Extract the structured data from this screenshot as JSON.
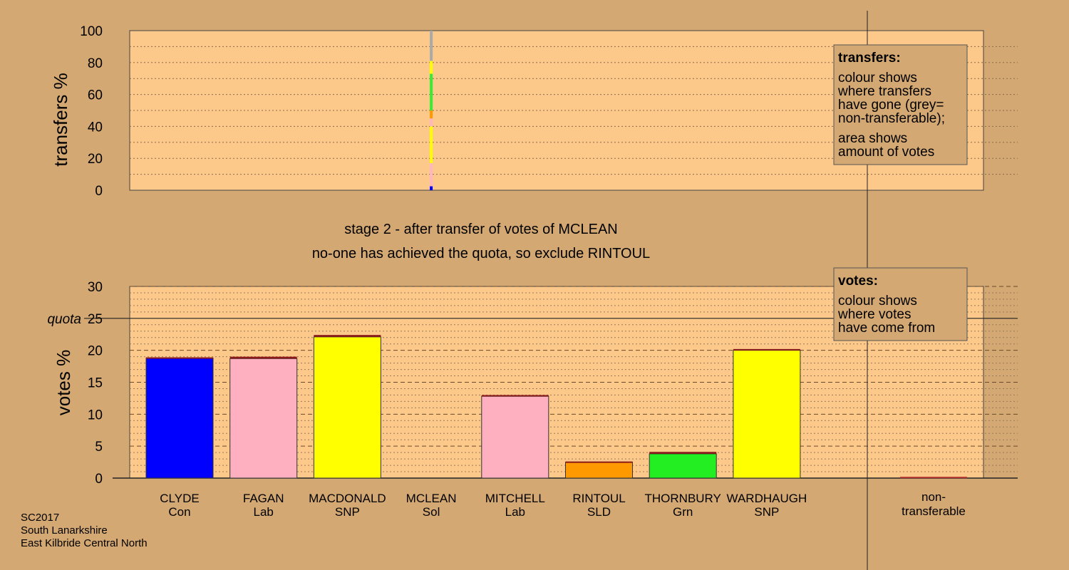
{
  "chart_data": [
    {
      "type": "bar",
      "name": "transfers",
      "ylabel": "transfers %",
      "ylim": [
        0,
        100
      ],
      "yticks": [
        "0",
        "20",
        "40",
        "60",
        "80",
        "100"
      ],
      "source_candidate": "MCLEAN",
      "segments": [
        {
          "from": 0,
          "to": 2.5,
          "color": "#0000ff"
        },
        {
          "from": 2.5,
          "to": 17,
          "color": "#ffb6c1"
        },
        {
          "from": 17,
          "to": 40,
          "color": "#ffff00"
        },
        {
          "from": 40,
          "to": 45,
          "color": "#ffb6c1"
        },
        {
          "from": 45,
          "to": 50,
          "color": "#ff9900"
        },
        {
          "from": 50,
          "to": 73,
          "color": "#33ee33"
        },
        {
          "from": 73,
          "to": 81,
          "color": "#ffff00"
        },
        {
          "from": 81,
          "to": 100,
          "color": "#aaaaaa"
        }
      ],
      "legend": {
        "title": "transfers:",
        "lines": [
          "colour shows",
          "where transfers",
          "have gone (grey=",
          "non-transferable);",
          "area shows",
          "amount of votes"
        ]
      }
    },
    {
      "type": "bar",
      "name": "votes",
      "ylabel": "votes %",
      "ylim": [
        0,
        30
      ],
      "yticks": [
        "0",
        "5",
        "10",
        "15",
        "20",
        "25",
        "30"
      ],
      "quota": 25,
      "quota_label": "quota",
      "categories": [
        {
          "name": "CLYDE",
          "party": "Con",
          "value": 18.8,
          "added": 0.1,
          "color": "#0000ff"
        },
        {
          "name": "FAGAN",
          "party": "Lab",
          "value": 18.7,
          "added": 0.3,
          "color": "#ffb0c0"
        },
        {
          "name": "MACDONALD",
          "party": "SNP",
          "value": 22.1,
          "added": 0.3,
          "color": "#ffff00"
        },
        {
          "name": "MCLEAN",
          "party": "Sol",
          "value": 0,
          "added": 0,
          "color": "#999999"
        },
        {
          "name": "MITCHELL",
          "party": "Lab",
          "value": 12.8,
          "added": 0.2,
          "color": "#ffb0c0"
        },
        {
          "name": "RINTOUL",
          "party": "SLD",
          "value": 2.5,
          "added": 0.1,
          "color": "#ff9900"
        },
        {
          "name": "THORNBURY",
          "party": "Grn",
          "value": 3.8,
          "added": 0.3,
          "color": "#22ee22"
        },
        {
          "name": "WARDHAUGH",
          "party": "SNP",
          "value": 20.0,
          "added": 0.2,
          "color": "#ffff00"
        }
      ],
      "nontransferable": {
        "label_line1": "non-",
        "label_line2": "transferable",
        "value": 0.2,
        "color": "#b03030"
      },
      "transfer_color": "#8b1a1a",
      "legend": {
        "title": "votes:",
        "lines": [
          "colour shows",
          "where votes",
          "have come from"
        ]
      }
    }
  ],
  "stage": {
    "line1": "stage 2 - after transfer of votes of MCLEAN",
    "line2": "no-one has achieved the quota, so exclude RINTOUL"
  },
  "footer": {
    "line1": "SC2017",
    "line2": "South Lanarkshire",
    "line3": "East Kilbride Central North"
  },
  "colors": {
    "background": "#d4a872",
    "plot_fill": "#fdc98a"
  }
}
